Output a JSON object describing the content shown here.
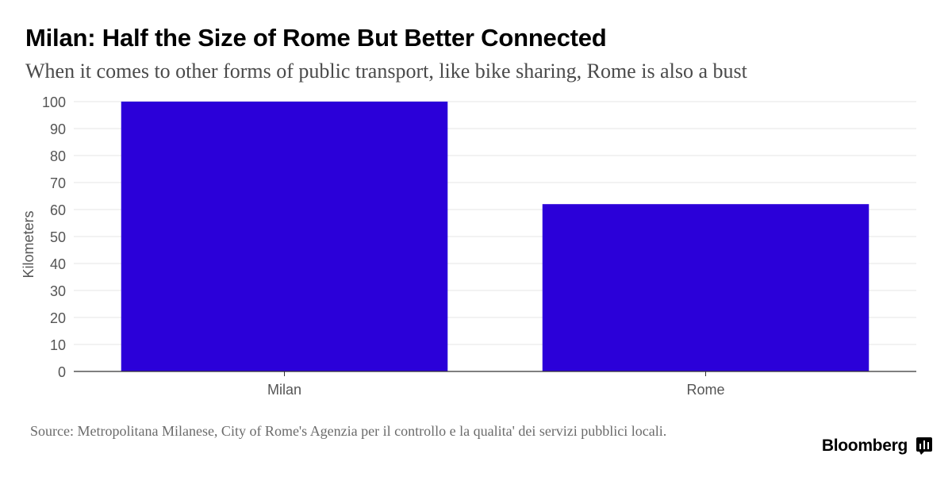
{
  "header": {
    "title": "Milan: Half the Size of Rome But Better Connected",
    "subtitle": "When it comes to other forms of public transport, like bike sharing, Rome is also a bust"
  },
  "footer": {
    "source": "Source: Metropolitana Milanese, City of Rome's Agenzia per il controllo e la qualita' dei servizi pubblici locali.",
    "brand": "Bloomberg",
    "brand_icon": "bloomberg-terminal-icon"
  },
  "chart_data": {
    "type": "bar",
    "categories": [
      "Milan",
      "Rome"
    ],
    "values": [
      100,
      62
    ],
    "ylabel": "Kilometers",
    "xlabel": "",
    "ylim": [
      0,
      100
    ],
    "yticks": [
      0,
      10,
      20,
      30,
      40,
      50,
      60,
      70,
      80,
      90,
      100
    ],
    "grid": true,
    "legend": "none",
    "colors": {
      "bar": "#2b00d9",
      "grid": "#e6e6e6",
      "axis": "#333333",
      "tick_label": "#555555"
    }
  }
}
